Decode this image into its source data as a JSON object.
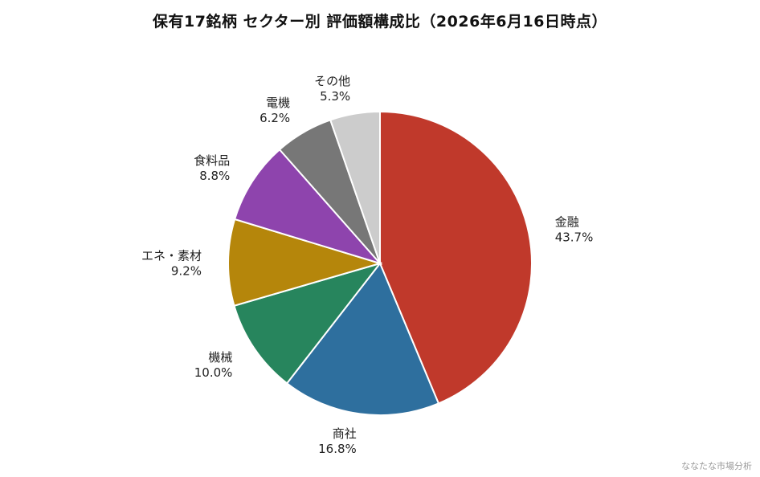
{
  "chart_data": {
    "type": "pie",
    "title": "保有17銘柄 セクター別 評価額構成比（2026年6月16日時点）",
    "start_angle": "12 o'clock",
    "direction": "clockwise",
    "slices": [
      {
        "label": "金融",
        "value": 43.7,
        "value_label": "43.7%",
        "color": "#c0392b"
      },
      {
        "label": "商社",
        "value": 16.8,
        "value_label": "16.8%",
        "color": "#2e6f9e"
      },
      {
        "label": "機械",
        "value": 10.0,
        "value_label": "10.0%",
        "color": "#27855d"
      },
      {
        "label": "エネ・素材",
        "value": 9.2,
        "value_label": "9.2%",
        "color": "#b5860b"
      },
      {
        "label": "食料品",
        "value": 8.8,
        "value_label": "8.8%",
        "color": "#8e44ad"
      },
      {
        "label": "電機",
        "value": 6.2,
        "value_label": "6.2%",
        "color": "#777777"
      },
      {
        "label": "その他",
        "value": 5.3,
        "value_label": "5.3%",
        "color": "#cccccc"
      }
    ]
  },
  "watermark": "ななたな市場分析"
}
